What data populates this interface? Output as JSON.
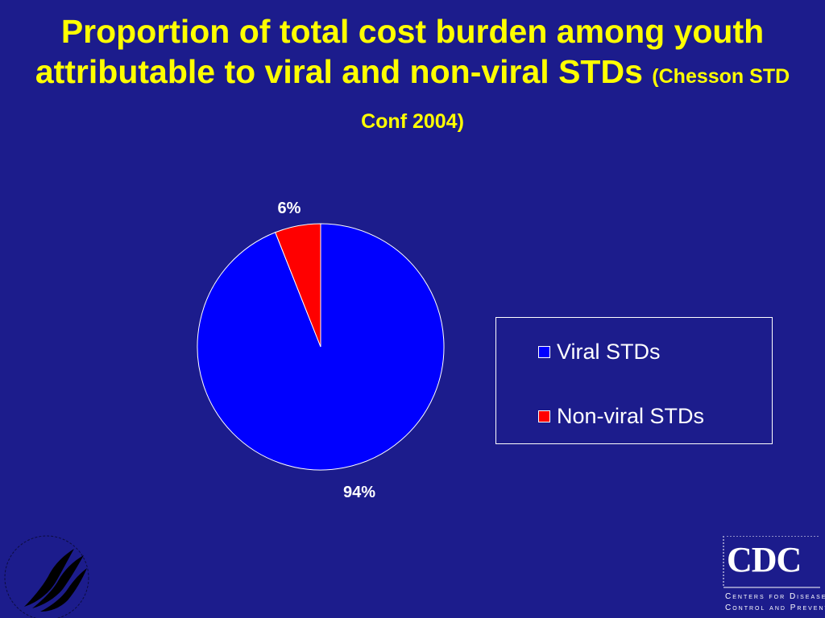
{
  "title": {
    "main": "Proportion of total cost burden among youth attributable to viral and non-viral STDs",
    "citation": "(Chesson STD Conf 2004)"
  },
  "chart_data": {
    "type": "pie",
    "categories": [
      "Viral STDs",
      "Non-viral STDs"
    ],
    "values": [
      94,
      6
    ],
    "data_labels": [
      "94%",
      "6%"
    ],
    "colors": [
      "#0000ff",
      "#ff0000"
    ],
    "legend": {
      "placement": "right",
      "entries": [
        "Viral STDs",
        "Non-viral STDs"
      ]
    }
  },
  "logos": {
    "cdc": {
      "letters": "CDC",
      "line1": "Centers for Disease",
      "line2": "Control and Prevention"
    },
    "hhs": {
      "icon": "hhs-eagle-icon"
    }
  }
}
